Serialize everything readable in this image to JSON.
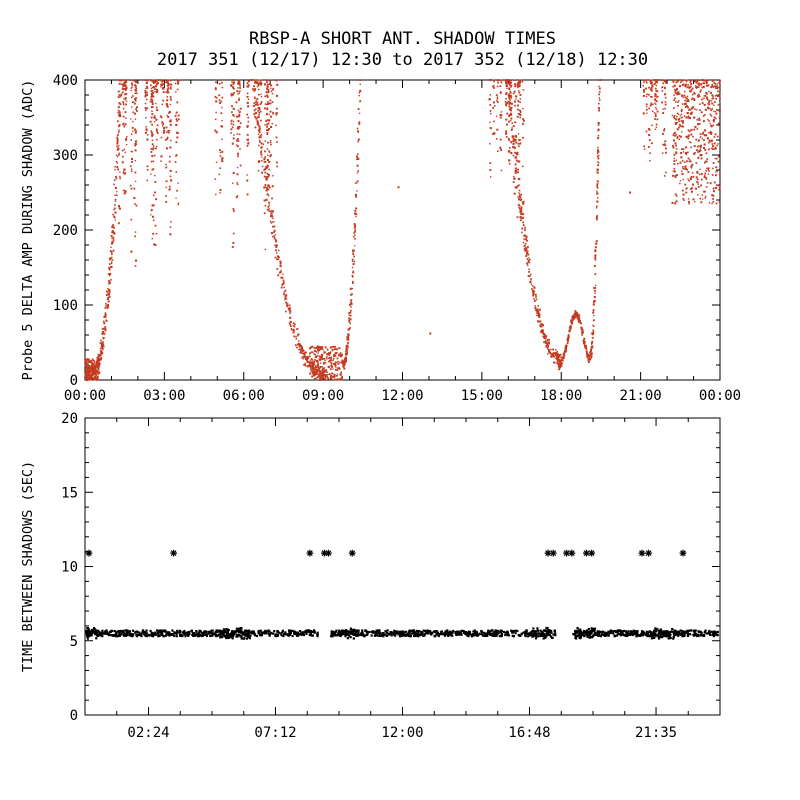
{
  "title": {
    "line1": "RBSP-A SHORT ANT. SHADOW TIMES",
    "line2": "2017 351 (12/17) 12:30 to 2017 352 (12/18) 12:30"
  },
  "chart_data": [
    {
      "type": "scatter",
      "name": "delta-amp-panel",
      "title": "RBSP-A SHORT ANT. SHADOW TIMES",
      "subtitle": "2017 351 (12/17) 12:30 to 2017 352 (12/18) 12:30",
      "xlabel": "",
      "ylabel": "Probe 5 DELTA AMP DURING SHADOW (ADC)",
      "xlim": [
        0,
        24
      ],
      "ylim": [
        0,
        400
      ],
      "xticks": {
        "values": [
          0,
          3,
          6,
          9,
          12,
          15,
          18,
          21,
          24
        ],
        "labels": [
          "00:00",
          "03:00",
          "06:00",
          "09:00",
          "12:00",
          "15:00",
          "18:00",
          "21:00",
          "00:00"
        ]
      },
      "xminor": 1,
      "yticks": {
        "values": [
          0,
          100,
          200,
          300,
          400
        ],
        "labels": [
          "0",
          "100",
          "200",
          "300",
          "400"
        ]
      },
      "yminor": 20,
      "marker": "dot",
      "color": "#c43b21",
      "grid": false,
      "series": [
        {
          "name": "probe5 delta amp",
          "features": [
            {
              "kind": "blob",
              "x": [
                0.0,
                0.55
              ],
              "y_range": [
                0,
                28
              ],
              "n": 150
            },
            {
              "kind": "curve",
              "x": [
                0.05,
                1.35
              ],
              "y_start": 5,
              "y_end": 400,
              "ease": "in",
              "p": 3.0,
              "strands": 3,
              "strand_offset": 12,
              "n": 300,
              "x_jitter": 0.05,
              "y_jitter": 9
            },
            {
              "kind": "columns",
              "x": [
                1.05,
                3.55
              ],
              "y_top": 400,
              "depth": [
                150,
                330
              ],
              "cols": 28,
              "per_col": 15
            },
            {
              "kind": "columns",
              "x": [
                4.95,
                7.25
              ],
              "y_top": 400,
              "depth": [
                170,
                335
              ],
              "cols": 24,
              "per_col": 14
            },
            {
              "kind": "curve",
              "x": [
                6.35,
                9.1
              ],
              "y_start": 400,
              "y_end": 4,
              "ease": "out",
              "p": 2.3,
              "strands": 3,
              "strand_offset": 14,
              "n": 340,
              "x_jitter": 0.06,
              "y_jitter": 8
            },
            {
              "kind": "blob",
              "x": [
                8.5,
                9.75
              ],
              "y_range": [
                0,
                45
              ],
              "n": 230
            },
            {
              "kind": "curve",
              "x": [
                9.75,
                10.4
              ],
              "y_start": 18,
              "y_end": 400,
              "ease": "in",
              "p": 2.0,
              "strands": 2,
              "strand_offset": 8,
              "n": 160,
              "x_jitter": 0.035,
              "y_jitter": 6
            },
            {
              "kind": "dots",
              "points": [
                [
                  11.85,
                  257
                ],
                [
                  13.05,
                  62
                ],
                [
                  20.6,
                  250
                ]
              ]
            },
            {
              "kind": "columns",
              "x": [
                15.3,
                16.65
              ],
              "y_top": 400,
              "depth": [
                210,
                345
              ],
              "cols": 16,
              "per_col": 13
            },
            {
              "kind": "curve",
              "x": [
                15.95,
                17.95
              ],
              "y_start": 400,
              "y_end": 25,
              "ease": "out",
              "p": 2.1,
              "strands": 3,
              "strand_offset": 12,
              "n": 300,
              "x_jitter": 0.05,
              "y_jitter": 8
            },
            {
              "kind": "bump",
              "x": [
                17.9,
                19.05
              ],
              "base": 12,
              "peak": 88,
              "peak_x": 18.55,
              "width": 0.28,
              "n": 220,
              "y_jitter": 9
            },
            {
              "kind": "curve",
              "x": [
                19.1,
                19.45
              ],
              "y_start": 30,
              "y_end": 400,
              "ease": "in",
              "p": 1.9,
              "strands": 2,
              "strand_offset": 7,
              "n": 130,
              "x_jitter": 0.025,
              "y_jitter": 6
            },
            {
              "kind": "columns",
              "x": [
                21.0,
                22.25
              ],
              "y_top": 400,
              "depth": [
                235,
                360
              ],
              "cols": 11,
              "per_col": 11
            },
            {
              "kind": "cloud",
              "x": [
                22.2,
                24.0
              ],
              "y_range": [
                235,
                400
              ],
              "n": 520,
              "top_bias": 1.7
            }
          ]
        }
      ]
    },
    {
      "type": "scatter",
      "name": "time-between-panel",
      "xlabel": "",
      "ylabel": "TIME BETWEEN SHADOWS (SEC)",
      "xlim": [
        0,
        24
      ],
      "ylim": [
        0,
        20
      ],
      "xticks": {
        "values": [
          2.4,
          7.2,
          12,
          16.8,
          21.583
        ],
        "labels": [
          "02:24",
          "07:12",
          "12:00",
          "16:48",
          "21:35"
        ]
      },
      "xminor": 1.2,
      "yticks": {
        "values": [
          0,
          5,
          10,
          15,
          20
        ],
        "labels": [
          "0",
          "5",
          "10",
          "15",
          "20"
        ]
      },
      "yminor": 1,
      "marker": "asterisk",
      "color": "#000000",
      "grid": false,
      "band": {
        "y": 5.5,
        "half_height": 0.2,
        "density_per_hour": 60,
        "segments": [
          [
            0.05,
            8.8
          ],
          [
            9.3,
            17.78
          ],
          [
            18.42,
            23.95
          ]
        ],
        "lumps": [
          [
            0.05,
            0.45
          ],
          [
            5.0,
            6.3
          ],
          [
            9.7,
            10.25
          ],
          [
            16.9,
            17.7
          ],
          [
            18.5,
            19.3
          ],
          [
            21.4,
            22.3
          ]
        ]
      },
      "outliers": {
        "y": 10.9,
        "x": [
          0.15,
          3.35,
          8.5,
          9.05,
          9.2,
          10.1,
          17.5,
          17.7,
          18.2,
          18.4,
          18.95,
          19.15,
          21.05,
          21.3,
          22.6
        ]
      }
    }
  ]
}
